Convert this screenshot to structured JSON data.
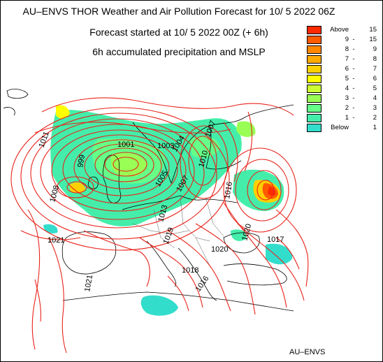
{
  "header": {
    "line1": "AU–ENVS THOR Weather and Air Pollution Forecast for 10/ 5 2022  06Z",
    "line2": "Forecast started at 10/ 5 2022  00Z (+ 6h)",
    "line3": "6h accumulated precipitation and MSLP"
  },
  "legend": {
    "items": [
      {
        "a": "Above",
        "b": "15",
        "color": "#ff2a00"
      },
      {
        "a": "9",
        "b": "15",
        "color": "#ff5a00"
      },
      {
        "a": "8",
        "b": "9",
        "color": "#ff8800"
      },
      {
        "a": "7",
        "b": "8",
        "color": "#ffaa00"
      },
      {
        "a": "6",
        "b": "7",
        "color": "#ffd000"
      },
      {
        "a": "5",
        "b": "6",
        "color": "#ffff00"
      },
      {
        "a": "4",
        "b": "5",
        "color": "#ccff33"
      },
      {
        "a": "3",
        "b": "4",
        "color": "#99ff55"
      },
      {
        "a": "2",
        "b": "3",
        "color": "#66ff88"
      },
      {
        "a": "1",
        "b": "2",
        "color": "#44eeaa"
      },
      {
        "a": "Below",
        "b": "1",
        "color": "#33ddcc"
      }
    ]
  },
  "isobar_labels": [
    "1011",
    "1001",
    "1003",
    "999",
    "1005",
    "1004",
    "1007",
    "1010",
    "1007",
    "1008",
    "1013",
    "1016",
    "1021",
    "1019",
    "1017",
    "1020",
    "1021",
    "1018",
    "1020",
    "1016"
  ],
  "colors": {
    "isobar": "#e8231a",
    "coast": "#000000",
    "border": "#555555"
  },
  "footer": "AU–ENVS"
}
